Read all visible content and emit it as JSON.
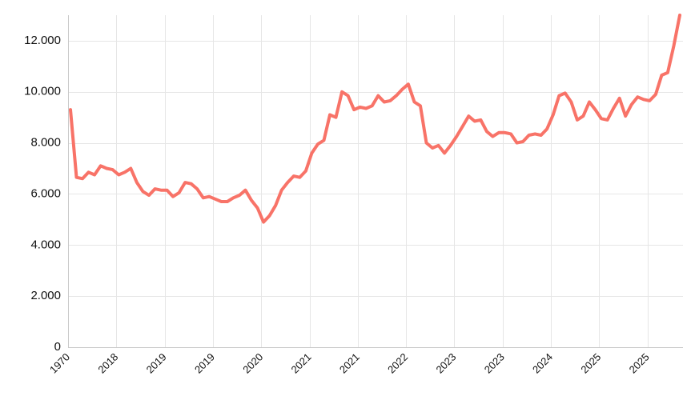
{
  "chart_data": {
    "type": "line",
    "title": "",
    "xlabel": "",
    "ylabel": "",
    "ylim": [
      0,
      13000
    ],
    "grid": true,
    "legend": "none",
    "y_ticks": [
      0,
      2000,
      4000,
      6000,
      8000,
      10000,
      12000
    ],
    "y_tick_labels": [
      "0",
      "2.000",
      "4.000",
      "6.000",
      "8.000",
      "10.000",
      "12.000"
    ],
    "x_tick_labels": [
      "1970",
      "2018",
      "2019",
      "2019",
      "2020",
      "2021",
      "2021",
      "2022",
      "2023",
      "2023",
      "2024",
      "2025",
      "2025"
    ],
    "series": [
      {
        "color": "#f87368",
        "values": [
          9300,
          6650,
          6600,
          6850,
          6750,
          7100,
          7000,
          6950,
          6750,
          6850,
          7000,
          6450,
          6100,
          5950,
          6200,
          6150,
          6150,
          5900,
          6050,
          6450,
          6400,
          6200,
          5850,
          5900,
          5800,
          5700,
          5700,
          5850,
          5950,
          6150,
          5750,
          5450,
          4900,
          5150,
          5550,
          6150,
          6450,
          6700,
          6650,
          6900,
          7600,
          7950,
          8100,
          9100,
          9000,
          10000,
          9850,
          9300,
          9400,
          9350,
          9450,
          9850,
          9600,
          9650,
          9850,
          10100,
          10300,
          9600,
          9450,
          8000,
          7800,
          7900,
          7600,
          7900,
          8250,
          8650,
          9050,
          8850,
          8900,
          8450,
          8250,
          8400,
          8400,
          8350,
          8000,
          8050,
          8300,
          8350,
          8300,
          8550,
          9100,
          9850,
          9950,
          9600,
          8900,
          9050,
          9600,
          9300,
          8950,
          8900,
          9350,
          9750,
          9050,
          9500,
          9800,
          9700,
          9650,
          9900,
          10650,
          10750,
          11800,
          13000
        ]
      }
    ]
  }
}
